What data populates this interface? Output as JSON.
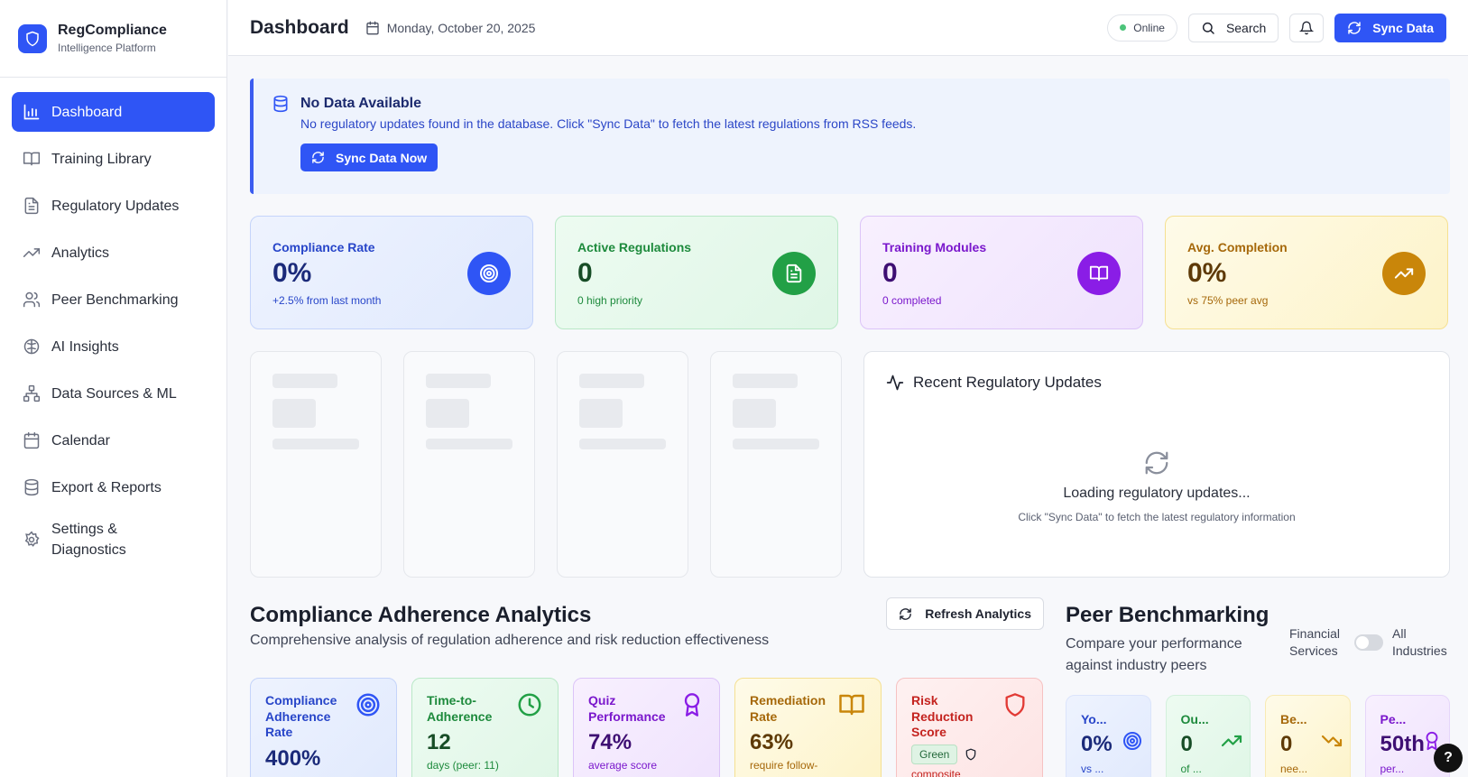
{
  "brand": {
    "title": "RegCompliance",
    "subtitle": "Intelligence Platform"
  },
  "sidebar": {
    "items": [
      {
        "label": "Dashboard",
        "icon": "bar-chart-icon",
        "active": true
      },
      {
        "label": "Training Library",
        "icon": "book-icon"
      },
      {
        "label": "Regulatory Updates",
        "icon": "file-text-icon"
      },
      {
        "label": "Analytics",
        "icon": "trending-up-icon"
      },
      {
        "label": "Peer Benchmarking",
        "icon": "users-icon"
      },
      {
        "label": "AI Insights",
        "icon": "brain-icon"
      },
      {
        "label": "Data Sources & ML",
        "icon": "network-icon"
      },
      {
        "label": "Calendar",
        "icon": "calendar-icon"
      },
      {
        "label": "Export & Reports",
        "icon": "database-icon"
      },
      {
        "label": "Settings & Diagnostics",
        "icon": "gear-icon"
      }
    ]
  },
  "header": {
    "title": "Dashboard",
    "date": "Monday, October 20, 2025",
    "status": "Online",
    "search_label": "Search",
    "sync_label": "Sync Data"
  },
  "alert": {
    "title": "No Data Available",
    "message": "No regulatory updates found in the database. Click \"Sync Data\" to fetch the latest regulations from RSS feeds.",
    "button": "Sync Data Now"
  },
  "kpis": [
    {
      "label": "Compliance Rate",
      "value": "0%",
      "sub": "+2.5% from last month",
      "icon": "target-icon",
      "color": "#2f55f5"
    },
    {
      "label": "Active Regulations",
      "value": "0",
      "sub": "0 high priority",
      "icon": "file-text-icon",
      "color": "#22a046"
    },
    {
      "label": "Training Modules",
      "value": "0",
      "sub": "0 completed",
      "icon": "book-open-icon",
      "color": "#8a1de6"
    },
    {
      "label": "Avg. Completion",
      "value": "0%",
      "sub": "vs 75% peer avg",
      "icon": "trending-up-icon",
      "color": "#c9860a"
    }
  ],
  "updates": {
    "title": "Recent Regulatory Updates",
    "loading": "Loading regulatory updates...",
    "hint": "Click \"Sync Data\" to fetch the latest regulatory information"
  },
  "analytics": {
    "title": "Compliance Adherence Analytics",
    "subtitle": "Comprehensive analysis of regulation adherence and risk reduction effectiveness",
    "refresh_label": "Refresh Analytics",
    "cards": [
      {
        "label": "Compliance Adherence Rate",
        "value": "400%",
        "sub": "",
        "icon": "target-icon"
      },
      {
        "label": "Time-to-Adherence",
        "value": "12",
        "sub": "days (peer: 11)",
        "icon": "clock-icon"
      },
      {
        "label": "Quiz Performance",
        "value": "74%",
        "sub": "average score",
        "icon": "award-icon"
      },
      {
        "label": "Remediation Rate",
        "value": "63%",
        "sub": "require follow-",
        "icon": "book-open-icon"
      },
      {
        "label": "Risk Reduction Score",
        "badge": "Green",
        "sub": "composite",
        "icon": "shield-icon"
      }
    ]
  },
  "peer": {
    "title": "Peer Benchmarking",
    "subtitle": "Compare your performance against industry peers",
    "toggle_left": "Financial Services",
    "toggle_right": "All Industries",
    "cards": [
      {
        "label": "Yo...",
        "value": "0%",
        "sub": "vs ...",
        "icon": "target-icon"
      },
      {
        "label": "Ou...",
        "value": "0",
        "sub": "of ...",
        "icon": "trending-up-icon"
      },
      {
        "label": "Be...",
        "value": "0",
        "sub": "nee...",
        "icon": "trending-down-icon"
      },
      {
        "label": "Pe...",
        "value": "50th",
        "sub": "per...",
        "icon": "award-icon"
      }
    ]
  },
  "help_label": "?"
}
